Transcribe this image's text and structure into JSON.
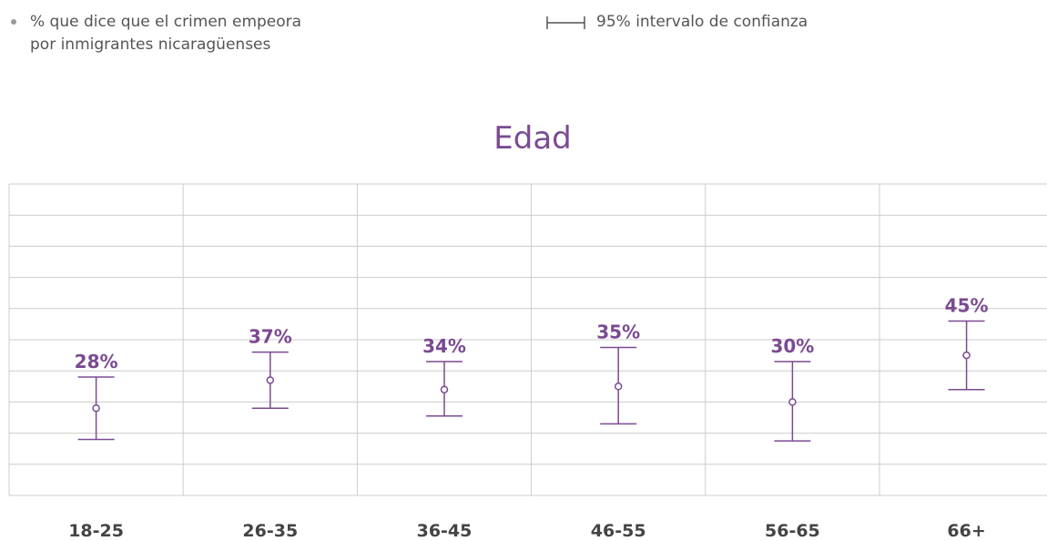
{
  "legend": {
    "series_label_line1": "% que dice que el crimen empeora",
    "series_label_line2": "por inmigrantes nicaragüenses",
    "ci_label": "95% intervalo de confianza"
  },
  "colors": {
    "accent": "#7b4a92",
    "grid": "#cccccc",
    "text": "#444444"
  },
  "chart_data": {
    "type": "scatter",
    "title": "Edad",
    "categories": [
      "18-25",
      "26-35",
      "36-45",
      "46-55",
      "56-65",
      "66+"
    ],
    "value_labels": [
      "28%",
      "37%",
      "34%",
      "35%",
      "30%",
      "45%"
    ],
    "series": [
      {
        "name": "% que dice que el crimen empeora por inmigrantes nicaragüenses",
        "values": [
          28,
          37,
          34,
          35,
          30,
          45
        ],
        "ci_low": [
          18,
          28,
          25.5,
          23,
          17.5,
          34
        ],
        "ci_high": [
          38,
          46,
          43,
          47.5,
          43,
          56
        ]
      }
    ],
    "ylim": [
      0,
      100
    ],
    "grid": true
  }
}
